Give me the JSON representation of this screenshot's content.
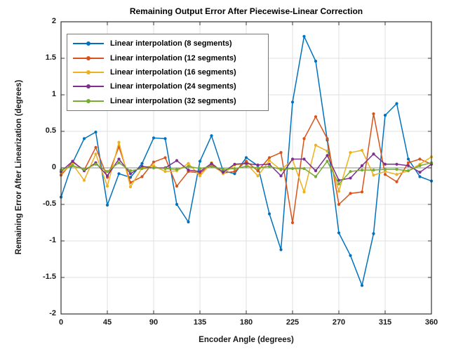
{
  "figure": {
    "title": "Remaining Output Error After Piecewise-Linear Correction",
    "xlabel": "Encoder Angle (degrees)",
    "ylabel": "Remaining Error After Linearization (degrees)"
  },
  "chart_data": {
    "type": "line",
    "title": "Remaining Output Error After Piecewise-Linear Correction",
    "xlabel": "Encoder Angle (degrees)",
    "ylabel": "Remaining Error After Linearization (degrees)",
    "xlim": [
      0,
      360
    ],
    "ylim": [
      -2,
      2
    ],
    "xticks": [
      0,
      45,
      90,
      135,
      180,
      225,
      270,
      315,
      360
    ],
    "yticks": [
      -2,
      -1.5,
      -1,
      -0.5,
      0,
      0.5,
      1,
      1.5,
      2
    ],
    "grid": true,
    "zero_line": true,
    "legend_position": "top-left",
    "marker": "dot",
    "x": [
      0,
      11.25,
      22.5,
      33.75,
      45,
      56.25,
      67.5,
      78.75,
      90,
      101.25,
      112.5,
      123.75,
      135,
      146.25,
      157.5,
      168.75,
      180,
      191.25,
      202.5,
      213.75,
      225,
      236.25,
      247.5,
      258.75,
      270,
      281.25,
      292.5,
      303.75,
      315,
      326.25,
      337.5,
      348.75,
      360
    ],
    "series": [
      {
        "name": "Linear interpolation (8 segments)",
        "color": "#0072BD",
        "values": [
          -0.4,
          0.07,
          0.4,
          0.49,
          -0.51,
          -0.08,
          -0.13,
          0.06,
          0.41,
          0.4,
          -0.5,
          -0.74,
          0.09,
          0.44,
          -0.04,
          -0.08,
          0.14,
          0.03,
          -0.63,
          -1.12,
          0.9,
          1.8,
          1.46,
          0.38,
          -0.89,
          -1.2,
          -1.61,
          -0.9,
          0.72,
          0.88,
          0.12,
          -0.12,
          -0.18
        ]
      },
      {
        "name": "Linear interpolation (12 segments)",
        "color": "#D95319",
        "values": [
          -0.1,
          0.08,
          -0.03,
          0.28,
          -0.13,
          0.29,
          -0.2,
          -0.12,
          0.08,
          0.14,
          -0.25,
          -0.05,
          -0.07,
          0.04,
          -0.07,
          -0.05,
          0.09,
          -0.04,
          0.14,
          0.21,
          -0.75,
          0.4,
          0.7,
          0.4,
          -0.5,
          -0.35,
          -0.33,
          0.74,
          -0.09,
          -0.19,
          0.07,
          0.12,
          0.05
        ]
      },
      {
        "name": "Linear interpolation (16 segments)",
        "color": "#EDB120",
        "values": [
          -0.07,
          0.05,
          -0.17,
          0.19,
          -0.25,
          0.35,
          -0.26,
          0.0,
          0.03,
          -0.05,
          -0.04,
          0.06,
          -0.11,
          0.07,
          -0.08,
          0.04,
          0.06,
          -0.11,
          0.1,
          -0.03,
          0.11,
          -0.33,
          0.31,
          0.23,
          -0.32,
          0.21,
          0.24,
          -0.1,
          -0.05,
          -0.09,
          -0.04,
          0.05,
          0.15
        ]
      },
      {
        "name": "Linear interpolation (24 segments)",
        "color": "#7E2F8E",
        "values": [
          -0.05,
          0.09,
          -0.04,
          0.07,
          -0.11,
          0.12,
          -0.08,
          0.02,
          0.0,
          0.0,
          0.1,
          -0.03,
          -0.05,
          0.06,
          -0.06,
          0.05,
          0.06,
          0.04,
          0.05,
          -0.11,
          0.12,
          0.12,
          -0.04,
          0.17,
          -0.17,
          -0.14,
          0.03,
          0.19,
          0.05,
          0.05,
          0.03,
          -0.06,
          0.05
        ]
      },
      {
        "name": "Linear interpolation (32 segments)",
        "color": "#77AC30",
        "values": [
          -0.03,
          0.03,
          -0.02,
          0.05,
          -0.05,
          0.07,
          -0.04,
          -0.01,
          0.0,
          -0.01,
          -0.02,
          0.02,
          -0.01,
          0.02,
          -0.02,
          -0.01,
          0.02,
          0.0,
          0.02,
          -0.02,
          -0.01,
          -0.01,
          -0.12,
          0.09,
          -0.22,
          -0.05,
          -0.03,
          -0.03,
          -0.02,
          -0.02,
          -0.04,
          0.03,
          0.07
        ]
      }
    ]
  }
}
